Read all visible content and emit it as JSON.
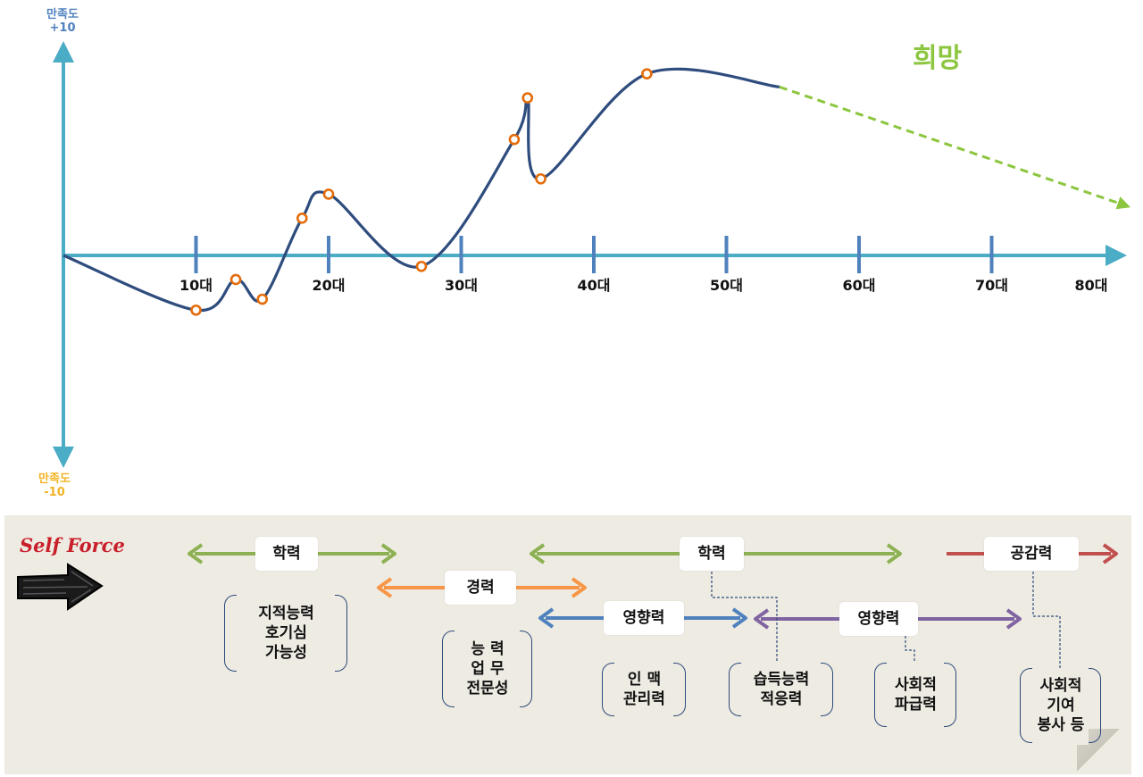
{
  "axis": {
    "top_label": [
      "만족도",
      "+10"
    ],
    "bottom_label": [
      "만족도",
      "-10"
    ],
    "top_color": "#4f81bd",
    "bottom_color": "#f2b324"
  },
  "chart_data": {
    "type": "line",
    "x_categories": [
      "10대",
      "20대",
      "30대",
      "40대",
      "50대",
      "60대",
      "70대",
      "80대"
    ],
    "y_range": [
      -10,
      10
    ],
    "series": [
      {
        "color": "#2e4c7d",
        "style": "solid",
        "points": [
          [
            0,
            0
          ],
          [
            10,
            -2.5
          ],
          [
            13,
            -1.1
          ],
          [
            15,
            -2
          ],
          [
            18,
            1.7
          ],
          [
            20,
            2.8
          ],
          [
            27,
            -0.5
          ],
          [
            34,
            5.3
          ],
          [
            35,
            7.2
          ],
          [
            36,
            3.5
          ],
          [
            44,
            8.3
          ],
          [
            54,
            7.7
          ]
        ]
      },
      {
        "color": "#8cc63f",
        "style": "dashed",
        "points": [
          [
            54,
            7.7
          ],
          [
            68,
            4.8
          ],
          [
            80,
            2.3
          ]
        ]
      }
    ],
    "markers": [
      [
        10,
        -2.5
      ],
      [
        13,
        -1.1
      ],
      [
        15,
        -2
      ],
      [
        18,
        1.7
      ],
      [
        20,
        2.8
      ],
      [
        27,
        -0.5
      ],
      [
        34,
        5.3
      ],
      [
        35,
        7.2
      ],
      [
        36,
        3.5
      ],
      [
        44,
        8.3
      ]
    ],
    "marker_color": "#e46c0a"
  },
  "hope_label": "희망",
  "self_force": {
    "line1": "Self Force"
  },
  "bands": [
    {
      "label": "학력",
      "color": "#8db152"
    },
    {
      "label": "경력",
      "color": "#f79646"
    },
    {
      "label": "학력",
      "color": "#8db152"
    },
    {
      "label": "영향력",
      "color": "#4f81bd"
    },
    {
      "label": "영향력",
      "color": "#8064a2"
    },
    {
      "label": "공감력",
      "color": "#c0504d"
    }
  ],
  "notes": [
    {
      "lines": [
        "지적능력",
        "호기심",
        "가능성"
      ]
    },
    {
      "lines": [
        "능 력",
        "업 무",
        "전문성"
      ]
    },
    {
      "lines": [
        "인 맥",
        "관리력"
      ]
    },
    {
      "lines": [
        "습득능력",
        "적응력"
      ]
    },
    {
      "lines": [
        "사회적",
        "파급력"
      ]
    },
    {
      "lines": [
        "사회적",
        "기여",
        "봉사 등"
      ]
    }
  ]
}
